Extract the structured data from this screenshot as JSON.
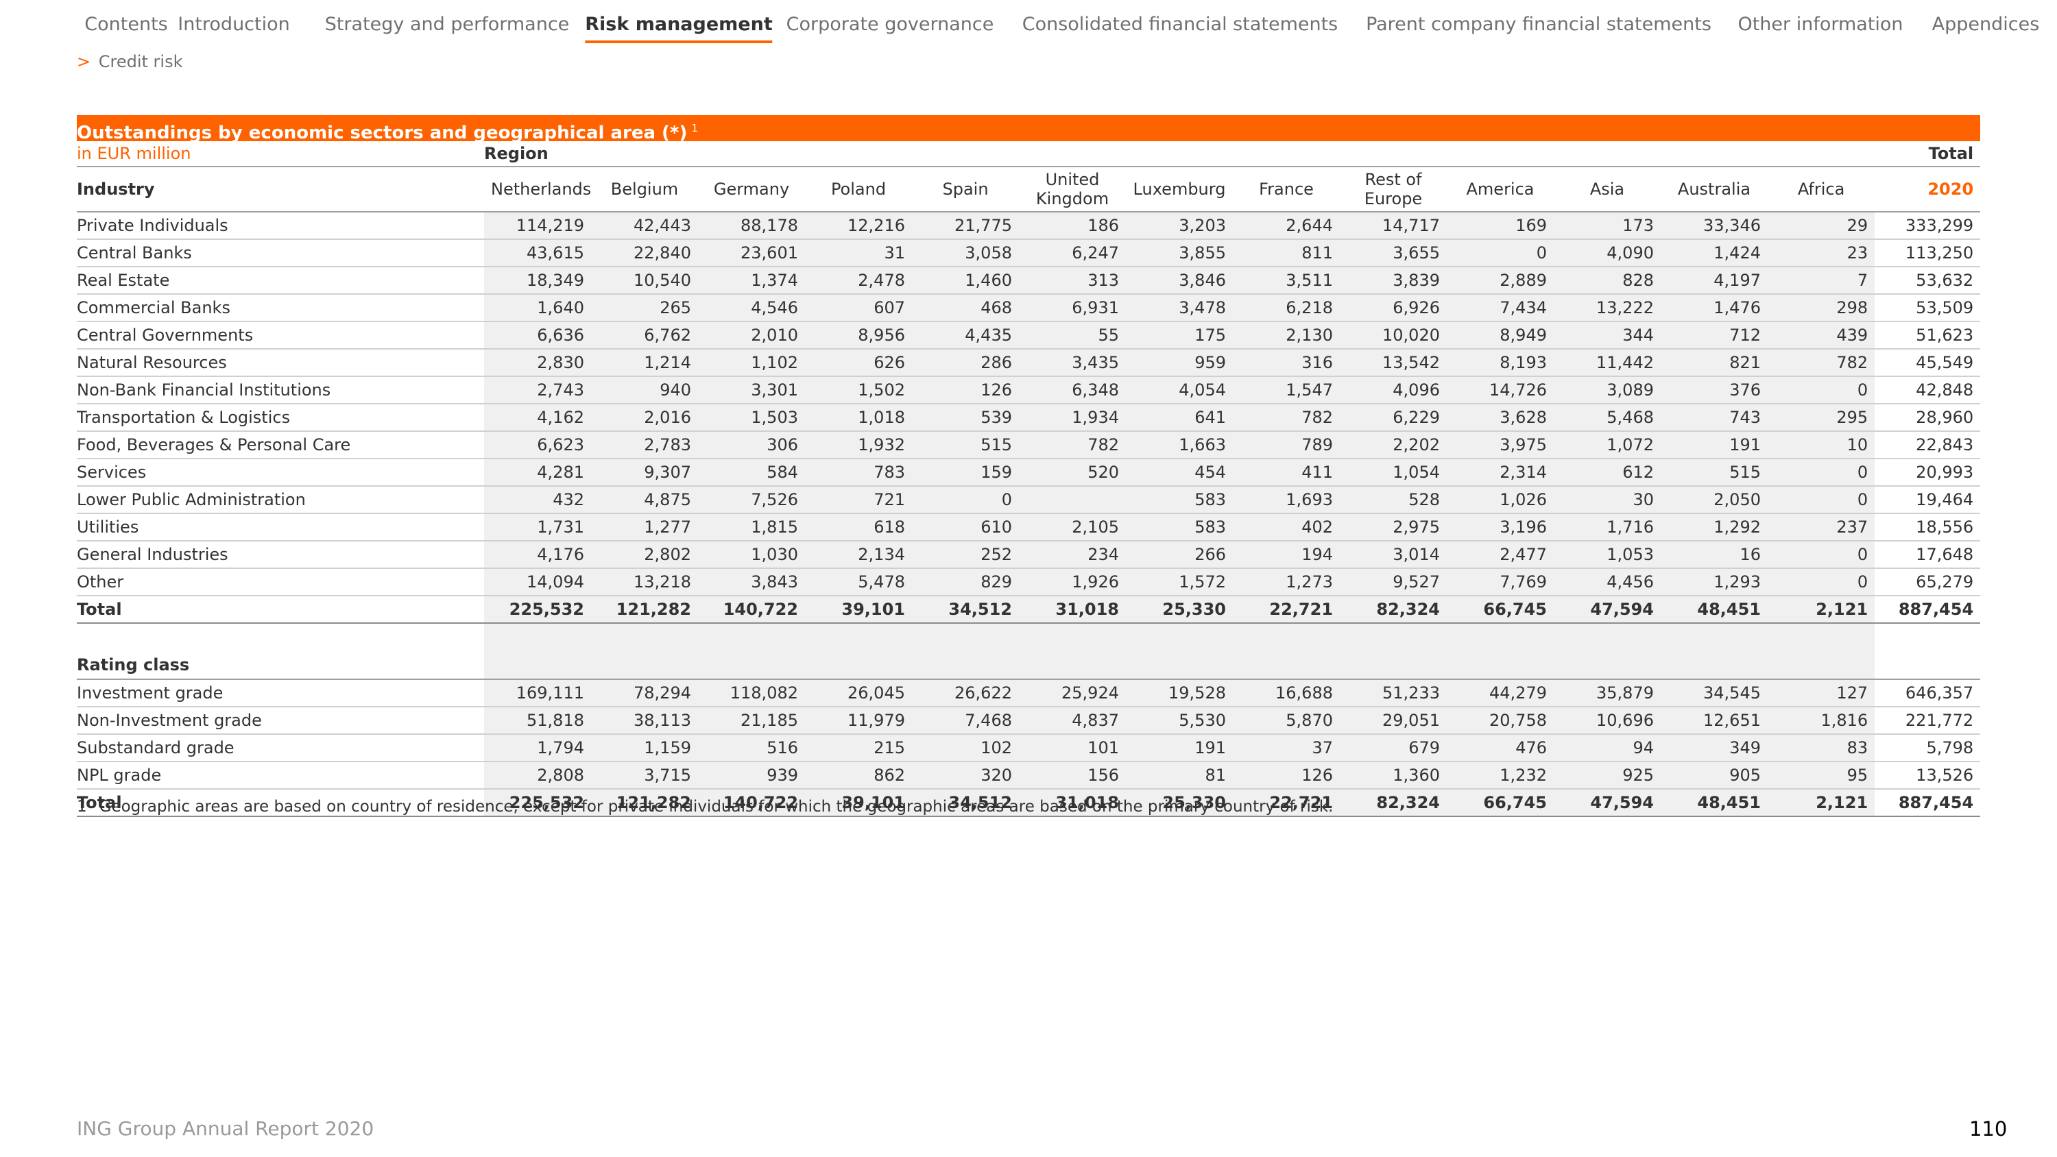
{
  "nav": {
    "items": [
      {
        "label": "Contents",
        "active": false
      },
      {
        "label": "Introduction",
        "active": false
      },
      {
        "label": "Strategy and performance",
        "active": false
      },
      {
        "label": "Risk management",
        "active": true
      },
      {
        "label": "Corporate governance",
        "active": false
      },
      {
        "label": "Consolidated financial statements",
        "active": false
      },
      {
        "label": "Parent company financial statements",
        "active": false
      },
      {
        "label": "Other information",
        "active": false
      },
      {
        "label": "Appendices",
        "active": false
      }
    ]
  },
  "breadcrumb": {
    "arrow": ">",
    "label": "Credit risk"
  },
  "table": {
    "title": "Outstandings by economic sectors and geographical area (*)",
    "title_sup": "1",
    "unit": "in EUR million",
    "region_label": "Region",
    "total_label": "Total",
    "header_industry": "Industry",
    "header_year": "2020",
    "columns": [
      "Netherlands",
      "Belgium",
      "Germany",
      "Poland",
      "Spain",
      "United Kingdom",
      "Luxemburg",
      "France",
      "Rest of Europe",
      "America",
      "Asia",
      "Australia",
      "Africa"
    ],
    "industry_rows": [
      {
        "label": "Private Individuals",
        "values": [
          "114,219",
          "42,443",
          "88,178",
          "12,216",
          "21,775",
          "186",
          "3,203",
          "2,644",
          "14,717",
          "169",
          "173",
          "33,346",
          "29",
          "333,299"
        ]
      },
      {
        "label": "Central Banks",
        "values": [
          "43,615",
          "22,840",
          "23,601",
          "31",
          "3,058",
          "6,247",
          "3,855",
          "811",
          "3,655",
          "0",
          "4,090",
          "1,424",
          "23",
          "113,250"
        ]
      },
      {
        "label": "Real Estate",
        "values": [
          "18,349",
          "10,540",
          "1,374",
          "2,478",
          "1,460",
          "313",
          "3,846",
          "3,511",
          "3,839",
          "2,889",
          "828",
          "4,197",
          "7",
          "53,632"
        ]
      },
      {
        "label": "Commercial Banks",
        "values": [
          "1,640",
          "265",
          "4,546",
          "607",
          "468",
          "6,931",
          "3,478",
          "6,218",
          "6,926",
          "7,434",
          "13,222",
          "1,476",
          "298",
          "53,509"
        ]
      },
      {
        "label": "Central Governments",
        "values": [
          "6,636",
          "6,762",
          "2,010",
          "8,956",
          "4,435",
          "55",
          "175",
          "2,130",
          "10,020",
          "8,949",
          "344",
          "712",
          "439",
          "51,623"
        ]
      },
      {
        "label": "Natural Resources",
        "values": [
          "2,830",
          "1,214",
          "1,102",
          "626",
          "286",
          "3,435",
          "959",
          "316",
          "13,542",
          "8,193",
          "11,442",
          "821",
          "782",
          "45,549"
        ]
      },
      {
        "label": "Non-Bank Financial Institutions",
        "values": [
          "2,743",
          "940",
          "3,301",
          "1,502",
          "126",
          "6,348",
          "4,054",
          "1,547",
          "4,096",
          "14,726",
          "3,089",
          "376",
          "0",
          "42,848"
        ]
      },
      {
        "label": "Transportation & Logistics",
        "values": [
          "4,162",
          "2,016",
          "1,503",
          "1,018",
          "539",
          "1,934",
          "641",
          "782",
          "6,229",
          "3,628",
          "5,468",
          "743",
          "295",
          "28,960"
        ]
      },
      {
        "label": "Food, Beverages & Personal Care",
        "values": [
          "6,623",
          "2,783",
          "306",
          "1,932",
          "515",
          "782",
          "1,663",
          "789",
          "2,202",
          "3,975",
          "1,072",
          "191",
          "10",
          "22,843"
        ]
      },
      {
        "label": "Services",
        "values": [
          "4,281",
          "9,307",
          "584",
          "783",
          "159",
          "520",
          "454",
          "411",
          "1,054",
          "2,314",
          "612",
          "515",
          "0",
          "20,993"
        ]
      },
      {
        "label": "Lower Public Administration",
        "values": [
          "432",
          "4,875",
          "7,526",
          "721",
          "0",
          "",
          "583",
          "1,693",
          "528",
          "1,026",
          "30",
          "2,050",
          "0",
          "19,464"
        ]
      },
      {
        "label": "Utilities",
        "values": [
          "1,731",
          "1,277",
          "1,815",
          "618",
          "610",
          "2,105",
          "583",
          "402",
          "2,975",
          "3,196",
          "1,716",
          "1,292",
          "237",
          "18,556"
        ]
      },
      {
        "label": "General Industries",
        "values": [
          "4,176",
          "2,802",
          "1,030",
          "2,134",
          "252",
          "234",
          "266",
          "194",
          "3,014",
          "2,477",
          "1,053",
          "16",
          "0",
          "17,648"
        ]
      },
      {
        "label": "Other",
        "values": [
          "14,094",
          "13,218",
          "3,843",
          "5,478",
          "829",
          "1,926",
          "1,572",
          "1,273",
          "9,527",
          "7,769",
          "4,456",
          "1,293",
          "0",
          "65,279"
        ]
      }
    ],
    "industry_total": {
      "label": "Total",
      "values": [
        "225,532",
        "121,282",
        "140,722",
        "39,101",
        "34,512",
        "31,018",
        "25,330",
        "22,721",
        "82,324",
        "66,745",
        "47,594",
        "48,451",
        "2,121",
        "887,454"
      ]
    },
    "rating_header": "Rating class",
    "rating_rows": [
      {
        "label": "Investment grade",
        "values": [
          "169,111",
          "78,294",
          "118,082",
          "26,045",
          "26,622",
          "25,924",
          "19,528",
          "16,688",
          "51,233",
          "44,279",
          "35,879",
          "34,545",
          "127",
          "646,357"
        ]
      },
      {
        "label": "Non-Investment grade",
        "values": [
          "51,818",
          "38,113",
          "21,185",
          "11,979",
          "7,468",
          "4,837",
          "5,530",
          "5,870",
          "29,051",
          "20,758",
          "10,696",
          "12,651",
          "1,816",
          "221,772"
        ]
      },
      {
        "label": "Substandard grade",
        "values": [
          "1,794",
          "1,159",
          "516",
          "215",
          "102",
          "101",
          "191",
          "37",
          "679",
          "476",
          "94",
          "349",
          "83",
          "5,798"
        ]
      },
      {
        "label": "NPL grade",
        "values": [
          "2,808",
          "3,715",
          "939",
          "862",
          "320",
          "156",
          "81",
          "126",
          "1,360",
          "1,232",
          "925",
          "905",
          "95",
          "13,526"
        ]
      }
    ],
    "rating_total": {
      "label": "Total",
      "values": [
        "225,532",
        "121,282",
        "140,722",
        "39,101",
        "34,512",
        "31,018",
        "25,330",
        "22,721",
        "82,324",
        "66,745",
        "47,594",
        "48,451",
        "2,121",
        "887,454"
      ]
    }
  },
  "footnote": {
    "number": "1",
    "text": "Geographic areas are based on country of residence, except for private individuals for which the geographic areas are based on the primary country of risk."
  },
  "footer": {
    "report": "ING Group Annual Report 2020",
    "page": "110"
  },
  "colors": {
    "accent": "#ff6200",
    "shade": "#f0f0f0",
    "text": "#333333"
  }
}
